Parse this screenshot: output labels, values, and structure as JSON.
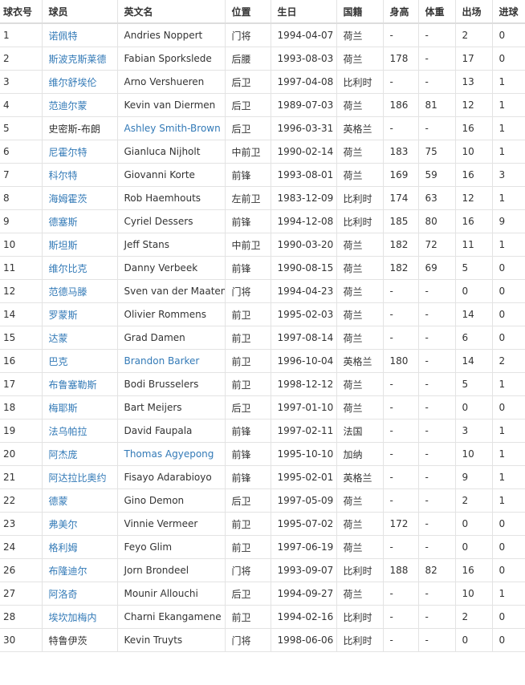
{
  "table": {
    "header": [
      "球衣号",
      "球员",
      "英文名",
      "位置",
      "生日",
      "国籍",
      "身高",
      "体重",
      "出场",
      "进球"
    ],
    "link_color": "#337ab7",
    "rows": [
      [
        "1",
        {
          "text": "诺佩特",
          "link": true
        },
        "Andries Noppert",
        "门将",
        "1994-04-07",
        "荷兰",
        "-",
        "-",
        "2",
        "0"
      ],
      [
        "2",
        {
          "text": "斯波克斯莱德",
          "link": true
        },
        "Fabian Sporkslede",
        "后腰",
        "1993-08-03",
        "荷兰",
        "178",
        "-",
        "17",
        "0"
      ],
      [
        "3",
        {
          "text": "维尔舒埃伦",
          "link": true
        },
        "Arno Vershueren",
        "后卫",
        "1997-04-08",
        "比利时",
        "-",
        "-",
        "13",
        "1"
      ],
      [
        "4",
        {
          "text": "范迪尔蒙",
          "link": true
        },
        "Kevin van Diermen",
        "后卫",
        "1989-07-03",
        "荷兰",
        "186",
        "81",
        "12",
        "1"
      ],
      [
        "5",
        "史密斯-布朗",
        {
          "text": "Ashley Smith-Brown",
          "link": true
        },
        "后卫",
        "1996-03-31",
        "英格兰",
        "-",
        "-",
        "16",
        "1"
      ],
      [
        "6",
        {
          "text": "尼霍尔特",
          "link": true
        },
        "Gianluca Nijholt",
        "中前卫",
        "1990-02-14",
        "荷兰",
        "183",
        "75",
        "10",
        "1"
      ],
      [
        "7",
        {
          "text": "科尔特",
          "link": true
        },
        "Giovanni Korte",
        "前锋",
        "1993-08-01",
        "荷兰",
        "169",
        "59",
        "16",
        "3"
      ],
      [
        "8",
        {
          "text": "海姆霍茨",
          "link": true
        },
        "Rob Haemhouts",
        "左前卫",
        "1983-12-09",
        "比利时",
        "174",
        "63",
        "12",
        "1"
      ],
      [
        "9",
        {
          "text": "德塞斯",
          "link": true
        },
        "Cyriel Dessers",
        "前锋",
        "1994-12-08",
        "比利时",
        "185",
        "80",
        "16",
        "9"
      ],
      [
        "10",
        {
          "text": "斯坦斯",
          "link": true
        },
        "Jeff Stans",
        "中前卫",
        "1990-03-20",
        "荷兰",
        "182",
        "72",
        "11",
        "1"
      ],
      [
        "11",
        {
          "text": "维尔比克",
          "link": true
        },
        "Danny Verbeek",
        "前锋",
        "1990-08-15",
        "荷兰",
        "182",
        "69",
        "5",
        "0"
      ],
      [
        "12",
        {
          "text": "范德马滕",
          "link": true
        },
        "Sven van der Maaten",
        "门将",
        "1994-04-23",
        "荷兰",
        "-",
        "-",
        "0",
        "0"
      ],
      [
        "14",
        {
          "text": "罗蒙斯",
          "link": true
        },
        "Olivier Rommens",
        "前卫",
        "1995-02-03",
        "荷兰",
        "-",
        "-",
        "14",
        "0"
      ],
      [
        "15",
        {
          "text": "达蒙",
          "link": true
        },
        "Grad Damen",
        "前卫",
        "1997-08-14",
        "荷兰",
        "-",
        "-",
        "6",
        "0"
      ],
      [
        "16",
        {
          "text": "巴克",
          "link": true
        },
        {
          "text": "Brandon Barker",
          "link": true
        },
        "前卫",
        "1996-10-04",
        "英格兰",
        "180",
        "-",
        "14",
        "2"
      ],
      [
        "17",
        {
          "text": "布鲁塞勒斯",
          "link": true
        },
        "Bodi Brusselers",
        "前卫",
        "1998-12-12",
        "荷兰",
        "-",
        "-",
        "5",
        "1"
      ],
      [
        "18",
        {
          "text": "梅耶斯",
          "link": true
        },
        "Bart Meijers",
        "后卫",
        "1997-01-10",
        "荷兰",
        "-",
        "-",
        "0",
        "0"
      ],
      [
        "19",
        {
          "text": "法乌帕拉",
          "link": true
        },
        "David Faupala",
        "前锋",
        "1997-02-11",
        "法国",
        "-",
        "-",
        "3",
        "1"
      ],
      [
        "20",
        {
          "text": "阿杰庞",
          "link": true
        },
        {
          "text": "Thomas Agyepong",
          "link": true
        },
        "前锋",
        "1995-10-10",
        "加纳",
        "-",
        "-",
        "10",
        "1"
      ],
      [
        "21",
        {
          "text": "阿达拉比奥约",
          "link": true
        },
        "Fisayo Adarabioyo",
        "前锋",
        "1995-02-01",
        "英格兰",
        "-",
        "-",
        "9",
        "1"
      ],
      [
        "22",
        {
          "text": "德蒙",
          "link": true
        },
        "Gino Demon",
        "后卫",
        "1997-05-09",
        "荷兰",
        "-",
        "-",
        "2",
        "1"
      ],
      [
        "23",
        {
          "text": "弗美尔",
          "link": true
        },
        "Vinnie Vermeer",
        "前卫",
        "1995-07-02",
        "荷兰",
        "172",
        "-",
        "0",
        "0"
      ],
      [
        "24",
        {
          "text": "格利姆",
          "link": true
        },
        "Feyo Glim",
        "前卫",
        "1997-06-19",
        "荷兰",
        "-",
        "-",
        "0",
        "0"
      ],
      [
        "26",
        {
          "text": "布隆迪尔",
          "link": true
        },
        "Jorn Brondeel",
        "门将",
        "1993-09-07",
        "比利时",
        "188",
        "82",
        "16",
        "0"
      ],
      [
        "27",
        {
          "text": "阿洛奇",
          "link": true
        },
        "Mounir Allouchi",
        "后卫",
        "1994-09-27",
        "荷兰",
        "-",
        "-",
        "10",
        "1"
      ],
      [
        "28",
        {
          "text": "埃坎加梅内",
          "link": true
        },
        "Charni Ekangamene",
        "前卫",
        "1994-02-16",
        "比利时",
        "-",
        "-",
        "2",
        "0"
      ],
      [
        "30",
        "特鲁伊茨",
        "Kevin Truyts",
        "门将",
        "1998-06-06",
        "比利时",
        "-",
        "-",
        "0",
        "0"
      ]
    ]
  }
}
